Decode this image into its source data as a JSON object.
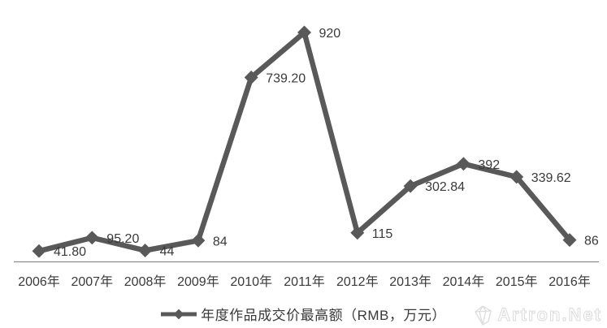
{
  "chart_data": {
    "type": "line",
    "title": "",
    "xlabel": "",
    "ylabel": "",
    "categories": [
      "2006年",
      "2007年",
      "2008年",
      "2009年",
      "2010年",
      "2011年",
      "2012年",
      "2013年",
      "2014年",
      "2015年",
      "2016年"
    ],
    "series": [
      {
        "name": "年度作品成交价最高额（RMB，万元）",
        "values": [
          41.8,
          95.2,
          44,
          84,
          739.2,
          920,
          115,
          302.84,
          392,
          339.62,
          86
        ],
        "value_labels": [
          "41.80",
          "95.20",
          "44",
          "84",
          "739.20",
          "920",
          "115",
          "302.84",
          "392",
          "339.62",
          "86"
        ]
      }
    ],
    "ylim": [
      0,
      920
    ],
    "grid": false,
    "y_axis_visible": false,
    "legend_position": "bottom",
    "marker": "diamond"
  },
  "legend": {
    "label": "年度作品成交价最高额（RMB，万元）"
  },
  "watermark": {
    "text": "Artron.Net"
  },
  "colors": {
    "line": "#595959",
    "text": "#3a3a3a",
    "axis": "#8c8c8c",
    "watermark": "#dcdcdc",
    "background": "#ffffff"
  }
}
